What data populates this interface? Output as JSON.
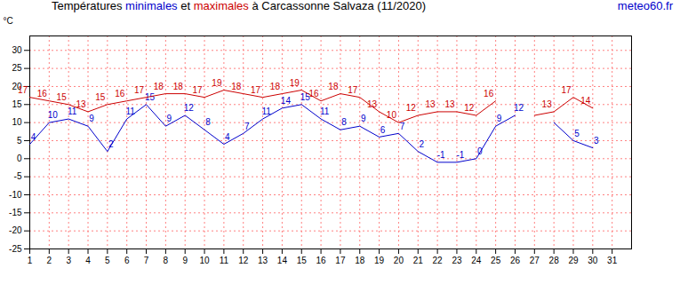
{
  "chart_data": {
    "type": "line",
    "title": "Températures minimales et maximales à Carcassonne Salvaza (11/2020)",
    "y_label": "°C",
    "annotations": [
      {
        "text": "meteo60.fr"
      }
    ],
    "x": [
      1,
      2,
      3,
      4,
      5,
      6,
      7,
      8,
      9,
      10,
      11,
      12,
      13,
      14,
      15,
      16,
      17,
      18,
      19,
      20,
      21,
      22,
      23,
      24,
      25,
      26,
      27,
      28,
      29,
      30,
      31
    ],
    "series": [
      {
        "name": "minimales",
        "color": "#0000cc",
        "values": [
          4,
          10,
          11,
          9,
          2,
          11,
          15,
          9,
          12,
          8,
          4,
          7,
          11,
          14,
          15,
          11,
          8,
          9,
          6,
          7,
          2,
          -1,
          -1,
          0,
          9,
          12,
          null,
          10,
          5,
          3,
          null
        ],
        "value_labels": [
          "4",
          "10",
          "11",
          "9",
          "2",
          "11",
          "15",
          "9",
          "12",
          "8",
          "4",
          "7",
          "11",
          "14",
          "15",
          "11",
          "8",
          "9",
          "6",
          "7",
          "2",
          "-1",
          "-1",
          "0",
          "9",
          "12",
          null,
          null,
          "5",
          "3",
          null
        ]
      },
      {
        "name": "maximales",
        "color": "#cc0000",
        "values": [
          17,
          16,
          15,
          13,
          15,
          16,
          17,
          18,
          18,
          17,
          19,
          18,
          17,
          18,
          19,
          16,
          18,
          17,
          13,
          10,
          12,
          13,
          13,
          12,
          16,
          null,
          12,
          13,
          17,
          14,
          null
        ],
        "value_labels": [
          "17",
          "16",
          "15",
          "13",
          "15",
          "16",
          "17",
          "18",
          "18",
          "17",
          "19",
          "18",
          "17",
          "18",
          "19",
          "16",
          "18",
          "17",
          "13",
          "10",
          "12",
          "13",
          "13",
          "12",
          "16",
          null,
          null,
          "13",
          "17",
          "14",
          null
        ]
      }
    ],
    "xlim": [
      1,
      32
    ],
    "xticks": [
      1,
      2,
      3,
      4,
      5,
      6,
      7,
      8,
      9,
      10,
      11,
      12,
      13,
      14,
      15,
      16,
      17,
      18,
      19,
      20,
      21,
      22,
      23,
      24,
      25,
      26,
      27,
      28,
      29,
      30,
      31
    ],
    "ylim": [
      -25,
      34
    ],
    "yticks": [
      -25,
      -20,
      -15,
      -10,
      -5,
      0,
      5,
      10,
      15,
      20,
      25,
      30
    ],
    "grid": true,
    "data_labels": true
  }
}
